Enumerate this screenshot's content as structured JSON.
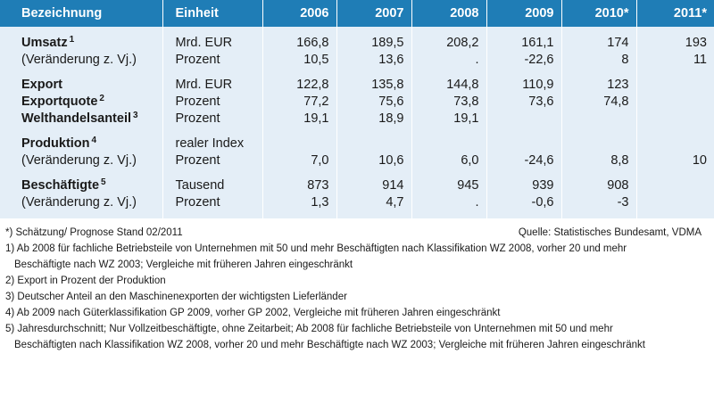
{
  "header": {
    "label": "Bezeichnung",
    "unit": "Einheit",
    "years": [
      "2006",
      "2007",
      "2008",
      "2009",
      "2010*",
      "2011*"
    ]
  },
  "rows": [
    {
      "label": "Umsatz",
      "sup": "1",
      "bold": true,
      "unit": "Mrd. EUR",
      "values": [
        "166,8",
        "189,5",
        "208,2",
        "161,1",
        "174",
        "193"
      ]
    },
    {
      "label": "(Veränderung z. Vj.)",
      "sup": "",
      "bold": false,
      "unit": "Prozent",
      "values": [
        "10,5",
        "13,6",
        ".",
        "-22,6",
        "8",
        "11"
      ]
    },
    {
      "label": "Export",
      "sup": "",
      "bold": true,
      "unit": "Mrd. EUR",
      "values": [
        "122,8",
        "135,8",
        "144,8",
        "110,9",
        "123",
        ""
      ]
    },
    {
      "label": "Exportquote",
      "sup": "2",
      "bold": true,
      "unit": "Prozent",
      "values": [
        "77,2",
        "75,6",
        "73,8",
        "73,6",
        "74,8",
        ""
      ]
    },
    {
      "label": "Welthandelsanteil",
      "sup": "3",
      "bold": true,
      "unit": "Prozent",
      "values": [
        "19,1",
        "18,9",
        "19,1",
        "",
        "",
        ""
      ]
    },
    {
      "label": "Produktion",
      "sup": "4",
      "bold": true,
      "unit": "realer Index",
      "values": [
        "",
        "",
        "",
        "",
        "",
        ""
      ]
    },
    {
      "label": "(Veränderung z. Vj.)",
      "sup": "",
      "bold": false,
      "unit": "Prozent",
      "values": [
        "7,0",
        "10,6",
        "6,0",
        "-24,6",
        "8,8",
        "10"
      ]
    },
    {
      "label": "Beschäftigte",
      "sup": "5",
      "bold": true,
      "unit": "Tausend",
      "values": [
        "873",
        "914",
        "945",
        "939",
        "908",
        ""
      ]
    },
    {
      "label": "(Veränderung z. Vj.)",
      "sup": "",
      "bold": false,
      "unit": "Prozent",
      "values": [
        "1,3",
        "4,7",
        ".",
        "-0,6",
        "-3",
        ""
      ]
    }
  ],
  "notes": {
    "estimate": "*) Schätzung/ Prognose Stand 02/2011",
    "source": "Quelle: Statistisches Bundesamt, VDMA",
    "footnotes": [
      {
        "line1": "1) Ab 2008 für fachliche Betriebsteile von Unternehmen mit 50 und mehr Beschäftigten nach Klassifikation WZ 2008, vorher 20 und mehr",
        "line2": "Beschäftigte nach WZ 2003; Vergleiche mit früheren Jahren eingeschränkt"
      },
      {
        "line1": "2) Export in Prozent der Produktion",
        "line2": ""
      },
      {
        "line1": "3) Deutscher Anteil an den Maschinenexporten der wichtigsten Lieferländer",
        "line2": ""
      },
      {
        "line1": "4) Ab 2009 nach Güterklassifikation GP 2009, vorher GP 2002, Vergleiche mit früheren Jahren eingeschränkt",
        "line2": ""
      },
      {
        "line1": "5) Jahresdurchschnitt; Nur Vollzeitbeschäftigte, ohne Zeitarbeit; Ab 2008 für fachliche Betriebsteile von Unternehmen mit 50 und mehr",
        "line2": "Beschäftigten nach Klassifikation WZ 2008, vorher 20 und mehr Beschäftigte nach WZ 2003; Vergleiche mit früheren Jahren eingeschränkt"
      }
    ]
  }
}
